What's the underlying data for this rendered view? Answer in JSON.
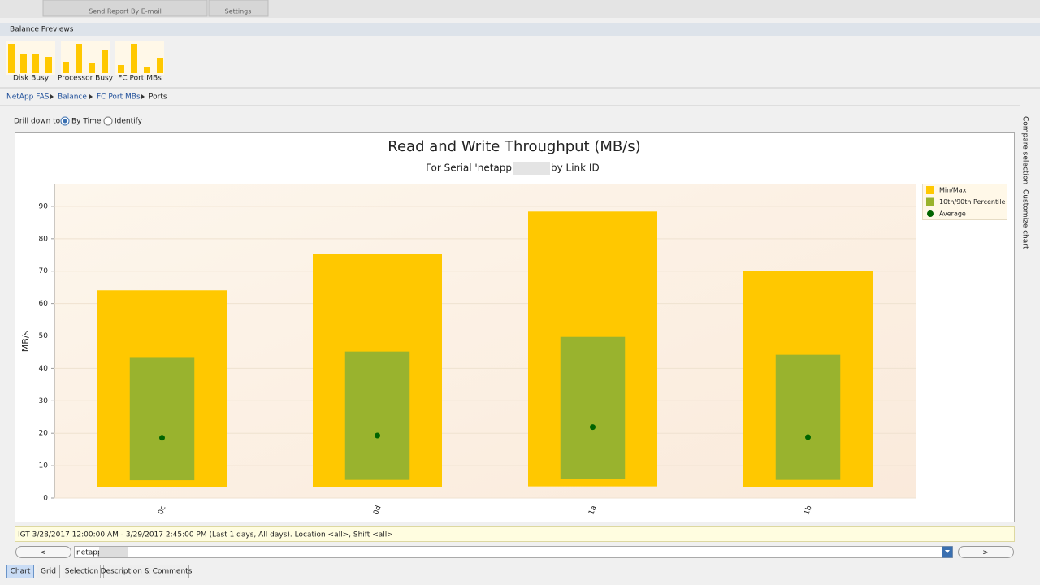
{
  "toolbar": {
    "groups": [
      "Send Report By E-mail",
      "Settings"
    ]
  },
  "previews": {
    "title": "Balance Previews",
    "items": [
      "Disk Busy",
      "Processor Busy",
      "FC Port MBs"
    ]
  },
  "breadcrumb": [
    "NetApp FAS",
    "Balance",
    "FC Port MBs",
    "Ports"
  ],
  "drill": {
    "label": "Drill down to:",
    "options": [
      "By Time",
      "Identify"
    ]
  },
  "side_tabs": [
    "Compare selection",
    "Customize chart"
  ],
  "chart_data": {
    "type": "range_bar",
    "title": "Read and Write Throughput (MB/s)",
    "subtitle": [
      "For Serial 'netapp",
      "by Link ID"
    ],
    "y_label": "MB/s",
    "categories": [
      "0c",
      "0d",
      "1a",
      "1b"
    ],
    "series": [
      {
        "name": "Min/Max",
        "color": "#ffc800",
        "low": [
          3.3,
          3.4,
          3.6,
          3.4
        ],
        "high": [
          64.1,
          75.4,
          88.4,
          70.1
        ]
      },
      {
        "name": "10th/90th Percentile",
        "color": "#99b32e",
        "low": [
          5.5,
          5.6,
          5.8,
          5.6
        ],
        "high": [
          43.5,
          45.2,
          49.7,
          44.2
        ]
      },
      {
        "name": "Average",
        "color": "#006400",
        "values": [
          18.6,
          19.3,
          21.9,
          18.8
        ]
      }
    ],
    "ylim": [
      0,
      97
    ],
    "yticks": [
      0,
      10,
      20,
      30,
      40,
      50,
      60,
      70,
      80,
      90
    ],
    "grid": true,
    "legend": "right"
  },
  "footer": {
    "info": "IGT 3/28/2017 12:00:00 AM - 3/29/2017 2:45:00 PM (Last 1 days, All days). Location <all>, Shift <all>",
    "filter": "netapp",
    "prev": "<",
    "next": ">"
  },
  "tabs": [
    "Chart",
    "Grid",
    "Selection",
    "Description & Comments"
  ]
}
